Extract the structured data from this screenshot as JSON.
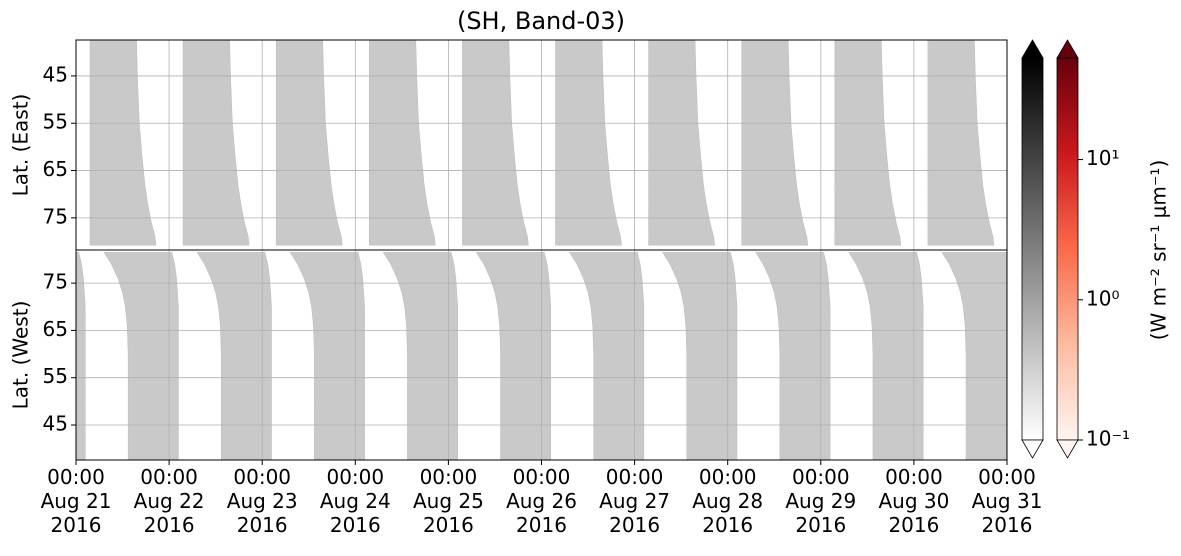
{
  "chart_data": {
    "type": "swath",
    "title": "(SH, Band-03)",
    "xlim": [
      0,
      10
    ],
    "xticks": [
      {
        "value": 0,
        "label": "00:00\nAug 21\n2016"
      },
      {
        "value": 1,
        "label": "00:00\nAug 22\n2016"
      },
      {
        "value": 2,
        "label": "00:00\nAug 23\n2016"
      },
      {
        "value": 3,
        "label": "00:00\nAug 24\n2016"
      },
      {
        "value": 4,
        "label": "00:00\nAug 25\n2016"
      },
      {
        "value": 5,
        "label": "00:00\nAug 26\n2016"
      },
      {
        "value": 6,
        "label": "00:00\nAug 27\n2016"
      },
      {
        "value": 7,
        "label": "00:00\nAug 28\n2016"
      },
      {
        "value": 8,
        "label": "00:00\nAug 29\n2016"
      },
      {
        "value": 9,
        "label": "00:00\nAug 30\n2016"
      },
      {
        "value": 10,
        "label": "00:00\nAug 31\n2016"
      }
    ],
    "grid": true,
    "swath_color": "#c9c9c9",
    "panels": [
      {
        "ylabel": "Lat. (East)",
        "ylim": [
          81.8,
          37.4
        ],
        "yticks": [
          45,
          55,
          65,
          75
        ],
        "passes": [
          0,
          1,
          2,
          3,
          4,
          5,
          6,
          7,
          8,
          9
        ],
        "lat": [
          37.4,
          45,
          55,
          62,
          68,
          72,
          76,
          79,
          80.8
        ],
        "start": [
          0.15,
          0.15,
          0.15,
          0.15,
          0.15,
          0.15,
          0.15,
          0.15,
          0.15
        ],
        "end": [
          0.65,
          0.66,
          0.68,
          0.71,
          0.74,
          0.77,
          0.81,
          0.85,
          0.86
        ]
      },
      {
        "ylabel": "Lat. (West)",
        "ylim": [
          37.6,
          82
        ],
        "yticks": [
          45,
          55,
          65,
          75
        ],
        "passes": [
          -1,
          0,
          1,
          2,
          3,
          4,
          5,
          6,
          7,
          8,
          9
        ],
        "lat": [
          37.6,
          50,
          60,
          66,
          70,
          73,
          76,
          79,
          81.5
        ],
        "start": [
          0.56,
          0.56,
          0.56,
          0.55,
          0.53,
          0.5,
          0.45,
          0.38,
          0.3
        ],
        "end": [
          1.1,
          1.1,
          1.1,
          1.1,
          1.1,
          1.09,
          1.08,
          1.06,
          1.03
        ]
      }
    ],
    "colorbar": {
      "scale": "log",
      "clim": [
        0.1,
        53
      ],
      "cticks": [
        {
          "value": 0.1,
          "label": "10⁻¹"
        },
        {
          "value": 1,
          "label": "10⁰"
        },
        {
          "value": 10,
          "label": "10¹"
        }
      ],
      "label": "(W m⁻² sr⁻¹ μm⁻¹)",
      "cmaps": [
        [
          "#ffffff",
          "#000000"
        ],
        [
          "#fff5f0",
          "#fcbba1",
          "#fb6a4a",
          "#cb181d",
          "#67000d"
        ]
      ]
    }
  }
}
